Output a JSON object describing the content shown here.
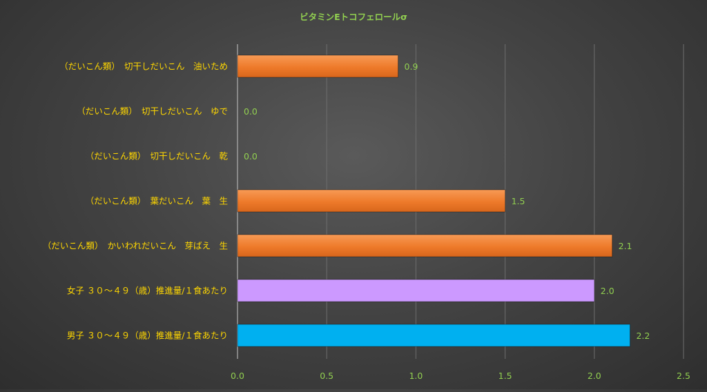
{
  "chart_data": {
    "type": "bar",
    "orientation": "horizontal",
    "title": "ビタミンEトコフェロールσ",
    "categories": [
      "（だいこん類）　切干しだいこん　油いため",
      "（だいこん類）　切干しだいこん　ゆで",
      "（だいこん類）　切干しだいこん　乾",
      "（だいこん類）　葉だいこん　葉　生",
      "（だいこん類）　かいわれだいこん　芽ばえ　生",
      "女子 ３０～４９（歳）推進量/１食あたり",
      "男子 ３０～４９（歳）推進量/１食あたり"
    ],
    "values": [
      0.9,
      0.0,
      0.0,
      1.5,
      2.1,
      2.0,
      2.2
    ],
    "data_labels": [
      "0.9",
      "0.0",
      "0.0",
      "1.5",
      "2.1",
      "2.0",
      "2.2"
    ],
    "bar_colors": [
      "#f07f2e",
      "#f07f2e",
      "#f07f2e",
      "#f07f2e",
      "#f07f2e",
      "#cc99ff",
      "#00b0f0"
    ],
    "xlim": [
      0,
      2.5
    ],
    "x_ticks": [
      "0.0",
      "0.5",
      "1.0",
      "1.5",
      "2.0",
      "2.5"
    ],
    "x_tick_values": [
      0,
      0.5,
      1.0,
      1.5,
      2.0,
      2.5
    ],
    "grid": true,
    "legend": "none",
    "xlabel": "",
    "ylabel": ""
  }
}
